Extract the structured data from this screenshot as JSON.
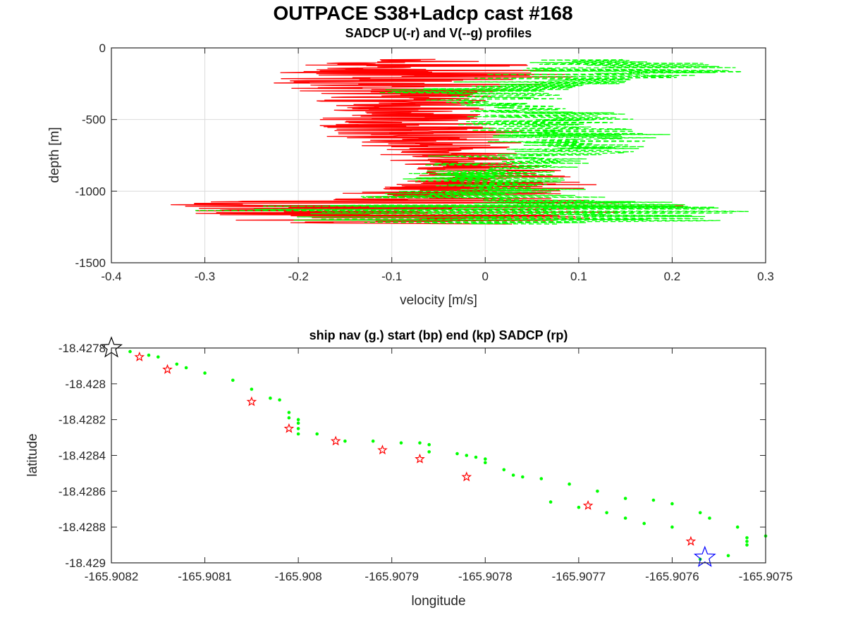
{
  "figure": {
    "title": "OUTPACE S38+Ladcp cast #168"
  },
  "chart_data": [
    {
      "type": "line",
      "title": "SADCP U(-r) and V(--g) profiles",
      "xlabel": "velocity [m/s]",
      "ylabel": "depth [m]",
      "xlim": [
        -0.4,
        0.3
      ],
      "ylim": [
        -1500,
        0
      ],
      "xticks": [
        "-0.4",
        "-0.3",
        "-0.2",
        "-0.1",
        "0",
        "0.1",
        "0.2",
        "0.3"
      ],
      "yticks": [
        "-1500",
        "-1000",
        "-500",
        "0"
      ],
      "grid": true,
      "series": [
        {
          "name": "U",
          "color": "#ff0000",
          "style": "solid",
          "depth": [
            -80,
            -120,
            -160,
            -200,
            -250,
            -300,
            -350,
            -400,
            -450,
            -500,
            -550,
            -600,
            -650,
            -700,
            -750,
            -800,
            -850,
            -900,
            -950,
            -1000,
            -1050,
            -1100,
            -1150,
            -1200,
            -1230
          ],
          "values": [
            -0.08,
            -0.15,
            -0.12,
            -0.1,
            -0.12,
            -0.08,
            -0.06,
            -0.09,
            -0.07,
            -0.1,
            -0.11,
            -0.08,
            -0.07,
            -0.06,
            -0.05,
            -0.04,
            -0.03,
            -0.02,
            -0.05,
            -0.04,
            -0.1,
            -0.2,
            -0.15,
            -0.12,
            -0.1
          ],
          "envelope_min": [
            -0.12,
            -0.2,
            -0.24,
            -0.22,
            -0.23,
            -0.2,
            -0.18,
            -0.19,
            -0.15,
            -0.18,
            -0.2,
            -0.18,
            -0.15,
            -0.13,
            -0.12,
            -0.1,
            -0.08,
            -0.07,
            -0.1,
            -0.12,
            -0.25,
            -0.39,
            -0.33,
            -0.28,
            -0.2
          ],
          "envelope_max": [
            0.0,
            0.05,
            0.08,
            0.1,
            0.1,
            0.02,
            0.01,
            0.02,
            0.0,
            0.01,
            0.02,
            0.05,
            0.04,
            0.05,
            0.03,
            0.05,
            0.08,
            0.1,
            0.12,
            0.12,
            0.1,
            0.22,
            0.15,
            0.1,
            0.05
          ]
        },
        {
          "name": "V",
          "color": "#00ff00",
          "style": "dashed",
          "depth": [
            -80,
            -120,
            -160,
            -200,
            -250,
            -300,
            -350,
            -400,
            -450,
            -500,
            -550,
            -600,
            -650,
            -700,
            -750,
            -800,
            -850,
            -900,
            -950,
            -1000,
            -1050,
            -1100,
            -1150,
            -1200,
            -1230
          ],
          "values": [
            0.1,
            0.15,
            0.2,
            0.12,
            0.05,
            0.02,
            0.0,
            0.03,
            0.06,
            0.08,
            0.07,
            0.1,
            0.09,
            0.08,
            0.06,
            0.04,
            0.02,
            -0.01,
            0.0,
            0.02,
            0.0,
            0.1,
            0.12,
            0.1,
            0.0
          ],
          "envelope_min": [
            0.03,
            0.05,
            0.02,
            -0.05,
            -0.08,
            -0.12,
            -0.1,
            -0.05,
            -0.03,
            -0.02,
            -0.04,
            -0.02,
            -0.04,
            -0.05,
            -0.06,
            -0.07,
            -0.09,
            -0.1,
            -0.08,
            -0.1,
            -0.15,
            -0.25,
            -0.35,
            -0.22,
            -0.1
          ],
          "envelope_max": [
            0.2,
            0.26,
            0.29,
            0.22,
            0.15,
            0.1,
            0.08,
            0.12,
            0.15,
            0.18,
            0.16,
            0.2,
            0.19,
            0.17,
            0.15,
            0.12,
            0.1,
            0.08,
            0.1,
            0.12,
            0.15,
            0.25,
            0.29,
            0.28,
            0.27
          ]
        }
      ]
    },
    {
      "type": "scatter",
      "title": "ship nav (g.) start (bp) end (kp) SADCP (rp)",
      "xlabel": "longitude",
      "ylabel": "latitude",
      "xlim": [
        -165.9082,
        -165.9075
      ],
      "ylim": [
        -18.429,
        -18.4278
      ],
      "xticks": [
        "-165.9082",
        "-165.9081",
        "-165.908",
        "-165.9079",
        "-165.9078",
        "-165.9077",
        "-165.9076",
        "-165.9075"
      ],
      "yticks": [
        "-18.429",
        "-18.4288",
        "-18.4286",
        "-18.4284",
        "-18.4282",
        "-18.428",
        "-18.4278"
      ],
      "grid": false,
      "ship_nav": {
        "color": "#00ff00",
        "lon": [
          -165.90818,
          -165.90816,
          -165.90815,
          -165.90813,
          -165.90812,
          -165.9081,
          -165.90807,
          -165.90805,
          -165.90803,
          -165.90802,
          -165.90801,
          -165.90801,
          -165.908,
          -165.908,
          -165.908,
          -165.908,
          -165.90798,
          -165.90795,
          -165.90792,
          -165.90789,
          -165.90787,
          -165.90786,
          -165.90786,
          -165.90783,
          -165.90782,
          -165.90781,
          -165.9078,
          -165.9078,
          -165.90778,
          -165.90777,
          -165.90776,
          -165.90774,
          -165.90771,
          -165.90768,
          -165.90765,
          -165.90762,
          -165.9076,
          -165.90757,
          -165.90756,
          -165.90753,
          -165.9075,
          -165.90752,
          -165.90752,
          -165.90752,
          -165.90754,
          -165.90757,
          -165.9076,
          -165.90763,
          -165.90765,
          -165.90767,
          -165.9077,
          -165.90773
        ],
        "lat": [
          -18.42782,
          -18.42784,
          -18.42785,
          -18.42789,
          -18.42791,
          -18.42794,
          -18.42798,
          -18.42803,
          -18.42808,
          -18.42809,
          -18.42816,
          -18.42819,
          -18.4282,
          -18.42822,
          -18.42825,
          -18.42828,
          -18.42828,
          -18.42832,
          -18.42832,
          -18.42833,
          -18.42833,
          -18.42834,
          -18.42838,
          -18.42839,
          -18.4284,
          -18.42841,
          -18.42842,
          -18.42844,
          -18.42848,
          -18.42851,
          -18.42852,
          -18.42853,
          -18.42856,
          -18.4286,
          -18.42864,
          -18.42865,
          -18.42867,
          -18.42872,
          -18.42875,
          -18.4288,
          -18.42885,
          -18.42886,
          -18.42888,
          -18.4289,
          -18.42896,
          -18.42898,
          -18.4288,
          -18.42878,
          -18.42875,
          -18.42872,
          -18.42869,
          -18.42866
        ]
      },
      "sadcp": {
        "color": "#ff0000",
        "lon": [
          -165.90817,
          -165.90814,
          -165.90805,
          -165.90801,
          -165.90796,
          -165.90791,
          -165.90787,
          -165.90782,
          -165.90769,
          -165.90758
        ],
        "lat": [
          -18.42785,
          -18.42792,
          -18.4281,
          -18.42825,
          -18.42832,
          -18.42837,
          -18.42842,
          -18.42852,
          -18.42868,
          -18.42888
        ]
      },
      "start": {
        "color": "#000000",
        "lon": -165.9082,
        "lat": -18.4278
      },
      "end": {
        "color": "#0000ff",
        "lon": -165.907565,
        "lat": -18.42897
      }
    }
  ]
}
